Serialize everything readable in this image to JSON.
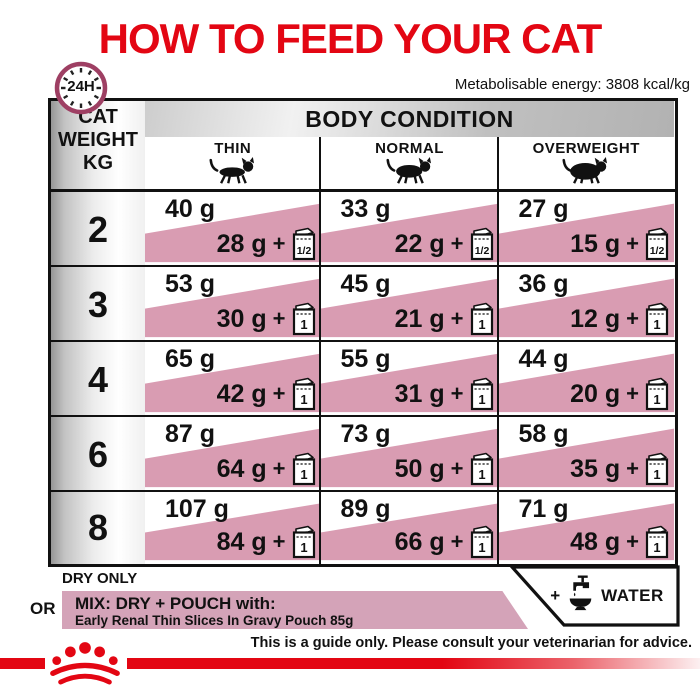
{
  "title": "HOW TO FEED YOUR CAT",
  "clock": {
    "label": "24H"
  },
  "energy_note": "Metabolisable energy: 3808 kcal/kg",
  "table": {
    "weight_header_lines": [
      "CAT",
      "WEIGHT",
      "KG"
    ],
    "body_condition_header": "BODY CONDITION",
    "columns": [
      "THIN",
      "NORMAL",
      "OVERWEIGHT"
    ],
    "plus": "+",
    "rows": [
      {
        "weight": "2",
        "cells": [
          {
            "dry": "40 g",
            "mix": "28 g",
            "pouch": "1/2"
          },
          {
            "dry": "33 g",
            "mix": "22 g",
            "pouch": "1/2"
          },
          {
            "dry": "27 g",
            "mix": "15 g",
            "pouch": "1/2"
          }
        ]
      },
      {
        "weight": "3",
        "cells": [
          {
            "dry": "53 g",
            "mix": "30 g",
            "pouch": "1"
          },
          {
            "dry": "45 g",
            "mix": "21 g",
            "pouch": "1"
          },
          {
            "dry": "36 g",
            "mix": "12 g",
            "pouch": "1"
          }
        ]
      },
      {
        "weight": "4",
        "cells": [
          {
            "dry": "65 g",
            "mix": "42 g",
            "pouch": "1"
          },
          {
            "dry": "55 g",
            "mix": "31 g",
            "pouch": "1"
          },
          {
            "dry": "44 g",
            "mix": "20 g",
            "pouch": "1"
          }
        ]
      },
      {
        "weight": "6",
        "cells": [
          {
            "dry": "87 g",
            "mix": "64 g",
            "pouch": "1"
          },
          {
            "dry": "73 g",
            "mix": "50 g",
            "pouch": "1"
          },
          {
            "dry": "58 g",
            "mix": "35 g",
            "pouch": "1"
          }
        ]
      },
      {
        "weight": "8",
        "cells": [
          {
            "dry": "107 g",
            "mix": "84 g",
            "pouch": "1"
          },
          {
            "dry": "89 g",
            "mix": "66 g",
            "pouch": "1"
          },
          {
            "dry": "71 g",
            "mix": "48 g",
            "pouch": "1"
          }
        ]
      }
    ]
  },
  "legend": {
    "dry_only": "DRY ONLY",
    "or": "OR",
    "mix_title": "MIX: DRY + POUCH with:",
    "mix_subtitle": "Early Renal Thin Slices In Gravy Pouch 85g",
    "water_plus": "+",
    "water": "WATER"
  },
  "disclaimer": "This is a guide only. Please consult your veterinarian for advice.",
  "icons": {
    "clock": "24h-clock-icon",
    "cats": [
      "cat-thin-icon",
      "cat-normal-icon",
      "cat-overweight-icon"
    ],
    "pouch": "pouch-icon",
    "faucet": "water-faucet-icon",
    "crown": "royal-canin-crown-icon"
  },
  "colors": {
    "accent_red": "#e30613",
    "cell_pink": "#d99cb2",
    "band_pink": "#d4a3b8",
    "clock_maroon": "#9e3f63"
  }
}
